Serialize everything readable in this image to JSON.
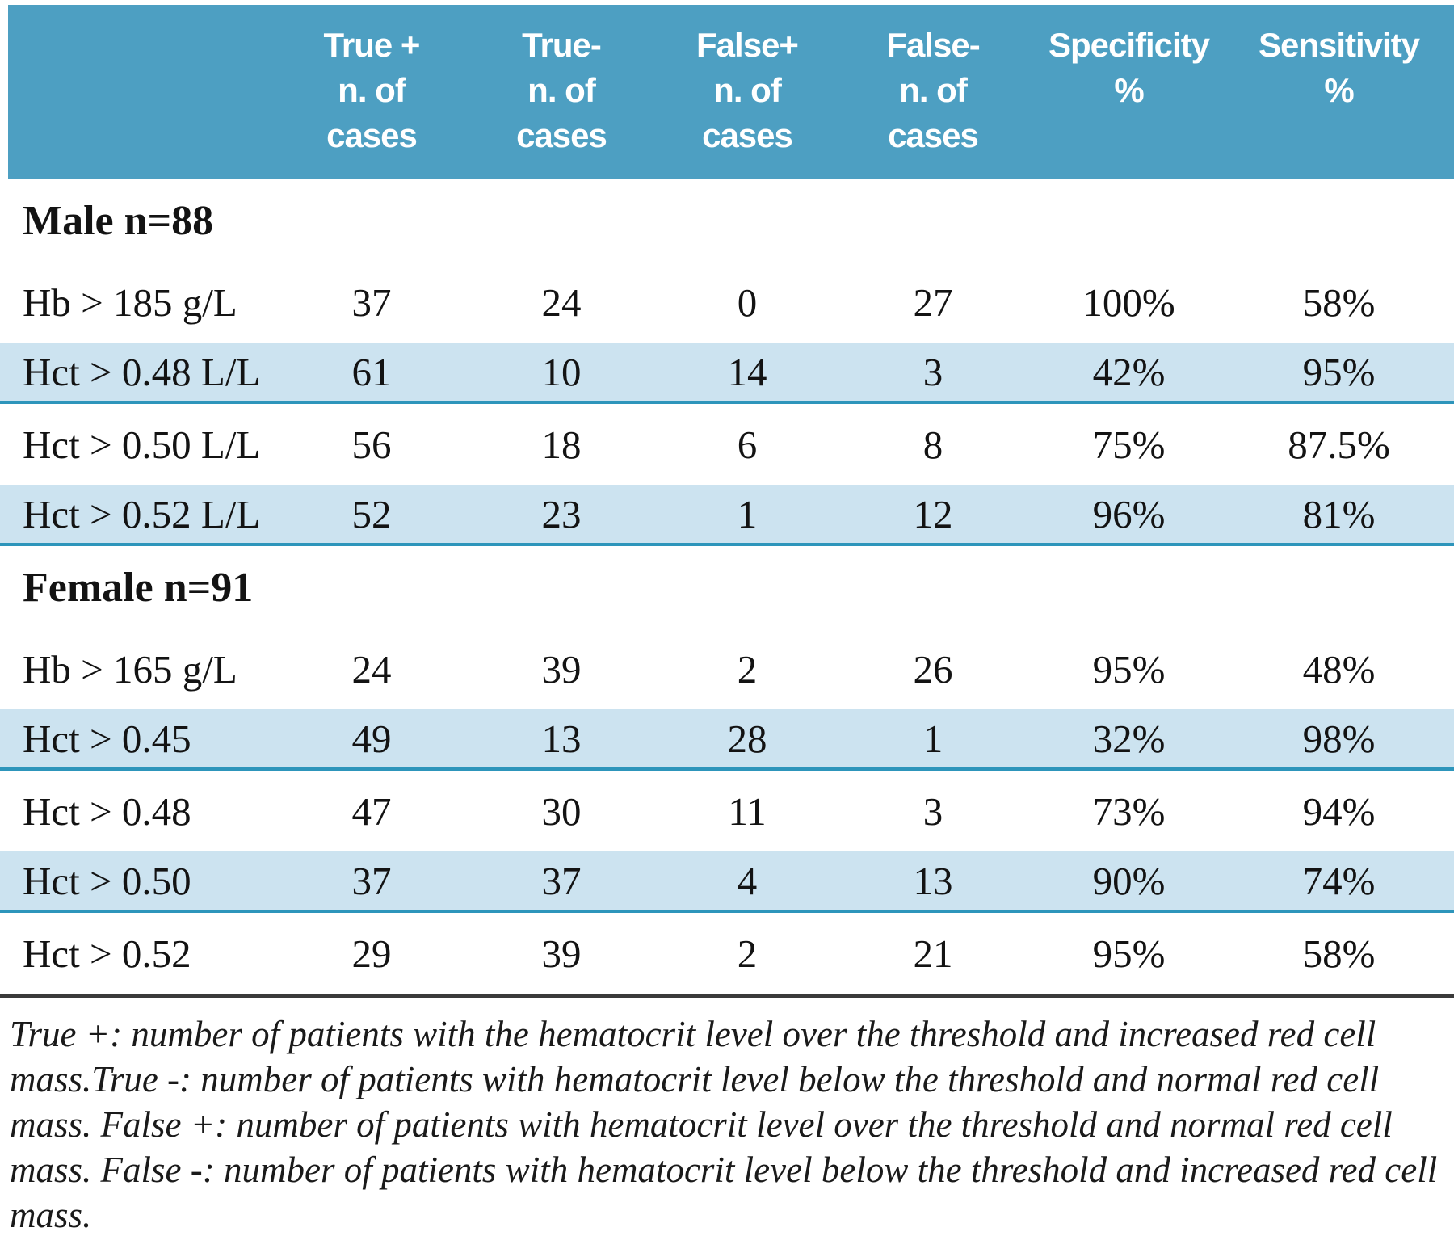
{
  "colors": {
    "header_bg": "#4d9fc2",
    "header_text": "#ffffff",
    "shaded_row_bg": "#cce3f0",
    "shaded_row_border": "#2d95bb",
    "divider_rule": "#3a3a3a",
    "body_text": "#131313"
  },
  "table": {
    "columns": [
      {
        "lines": [
          "True +",
          "n. of",
          "cases"
        ]
      },
      {
        "lines": [
          "True-",
          "n. of",
          "cases"
        ]
      },
      {
        "lines": [
          "False+",
          "n. of",
          "cases"
        ]
      },
      {
        "lines": [
          "False-",
          "n. of",
          "cases"
        ]
      },
      {
        "lines": [
          "Specificity",
          "%",
          ""
        ]
      },
      {
        "lines": [
          "Sensitivity",
          "%",
          ""
        ]
      }
    ],
    "sections": [
      {
        "label": "Male n=88",
        "rows": [
          {
            "label": "Hb > 185 g/L",
            "shaded": false,
            "values": [
              "37",
              "24",
              "0",
              "27",
              "100%",
              "58%"
            ]
          },
          {
            "label": "Hct > 0.48 L/L",
            "shaded": true,
            "values": [
              "61",
              "10",
              "14",
              "3",
              "42%",
              "95%"
            ]
          },
          {
            "label": "Hct > 0.50 L/L",
            "shaded": false,
            "values": [
              "56",
              "18",
              "6",
              "8",
              "75%",
              "87.5%"
            ]
          },
          {
            "label": "Hct > 0.52 L/L",
            "shaded": true,
            "values": [
              "52",
              "23",
              "1",
              "12",
              "96%",
              "81%"
            ]
          }
        ]
      },
      {
        "label": "Female n=91",
        "rows": [
          {
            "label": "Hb > 165 g/L",
            "shaded": false,
            "values": [
              "24",
              "39",
              "2",
              "26",
              "95%",
              "48%"
            ]
          },
          {
            "label": "Hct > 0.45",
            "shaded": true,
            "values": [
              "49",
              "13",
              "28",
              "1",
              "32%",
              "98%"
            ]
          },
          {
            "label": "Hct > 0.48",
            "shaded": false,
            "values": [
              "47",
              "30",
              "11",
              "3",
              "73%",
              "94%"
            ]
          },
          {
            "label": "Hct > 0.50",
            "shaded": true,
            "values": [
              "37",
              "37",
              "4",
              "13",
              "90%",
              "74%"
            ]
          },
          {
            "label": "Hct > 0.52",
            "shaded": false,
            "values": [
              "29",
              "39",
              "2",
              "21",
              "95%",
              "58%"
            ]
          }
        ]
      }
    ]
  },
  "footnote": {
    "text": "True +: number of patients with the hematocrit level over the threshold and increased red cell mass.True -: number of patients with hematocrit level below the threshold and normal red cell mass. False +: number of patients with hematocrit level over the threshold and normal red cell mass. False -: number of patients with hematocrit level below the threshold and increased red cell mass."
  }
}
